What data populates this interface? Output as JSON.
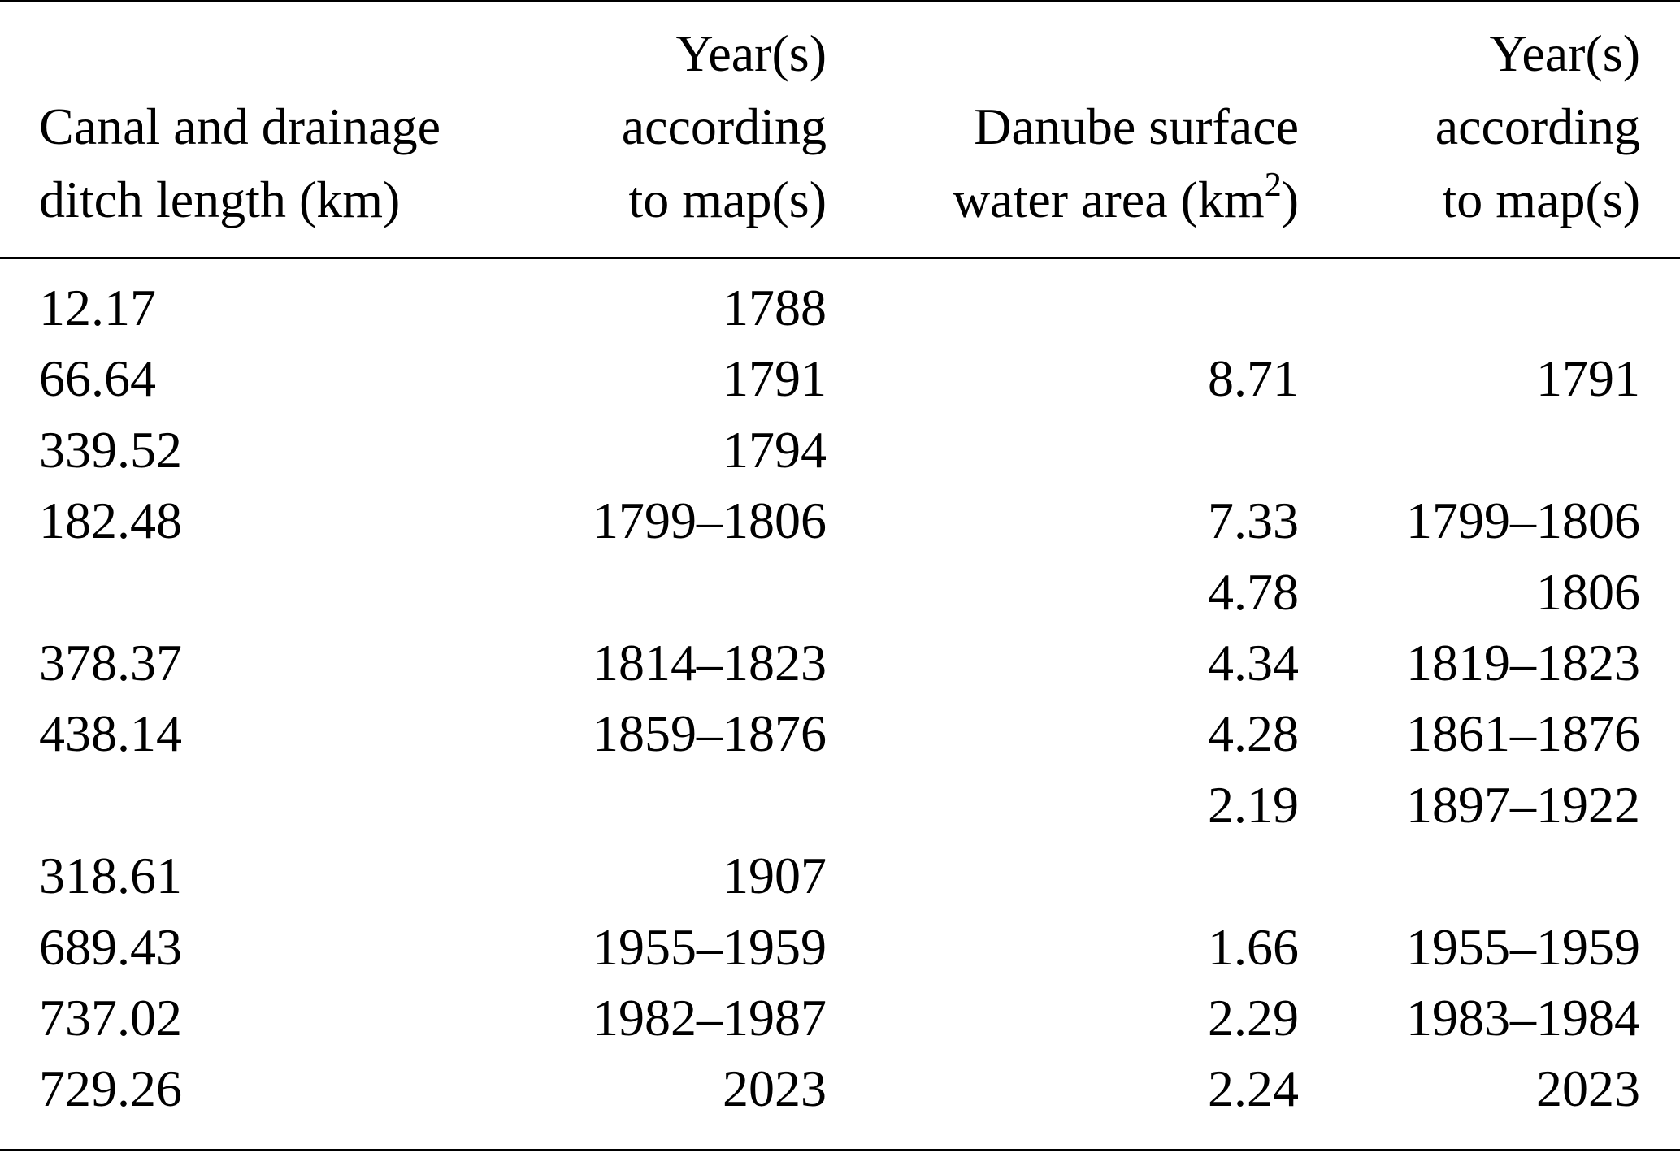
{
  "table": {
    "headers": {
      "col1_line1": "Canal and drainage",
      "col1_line2": "ditch length (km)",
      "col2_line1": "Year(s)",
      "col2_line2": "according",
      "col2_line3": "to map(s)",
      "col3_line1": "Danube surface",
      "col3_line2_pre": "water area (km",
      "col3_line2_sup": "2",
      "col3_line2_post": ")",
      "col4_line1": "Year(s)",
      "col4_line2": "according",
      "col4_line3": "to map(s)"
    },
    "rows": [
      {
        "canal_length": "12.17",
        "canal_years": "1788",
        "water_area": "",
        "water_years": ""
      },
      {
        "canal_length": "66.64",
        "canal_years": "1791",
        "water_area": "8.71",
        "water_years": "1791"
      },
      {
        "canal_length": "339.52",
        "canal_years": "1794",
        "water_area": "",
        "water_years": ""
      },
      {
        "canal_length": "182.48",
        "canal_years": "1799–1806",
        "water_area": "7.33",
        "water_years": "1799–1806"
      },
      {
        "canal_length": "",
        "canal_years": "",
        "water_area": "4.78",
        "water_years": "1806"
      },
      {
        "canal_length": "378.37",
        "canal_years": "1814–1823",
        "water_area": "4.34",
        "water_years": "1819–1823"
      },
      {
        "canal_length": "438.14",
        "canal_years": "1859–1876",
        "water_area": "4.28",
        "water_years": "1861–1876"
      },
      {
        "canal_length": "",
        "canal_years": "",
        "water_area": "2.19",
        "water_years": "1897–1922"
      },
      {
        "canal_length": "318.61",
        "canal_years": "1907",
        "water_area": "",
        "water_years": ""
      },
      {
        "canal_length": "689.43",
        "canal_years": "1955–1959",
        "water_area": "1.66",
        "water_years": "1955–1959"
      },
      {
        "canal_length": "737.02",
        "canal_years": "1982–1987",
        "water_area": "2.29",
        "water_years": "1983–1984"
      },
      {
        "canal_length": "729.26",
        "canal_years": "2023",
        "water_area": "2.24",
        "water_years": "2023"
      }
    ]
  }
}
